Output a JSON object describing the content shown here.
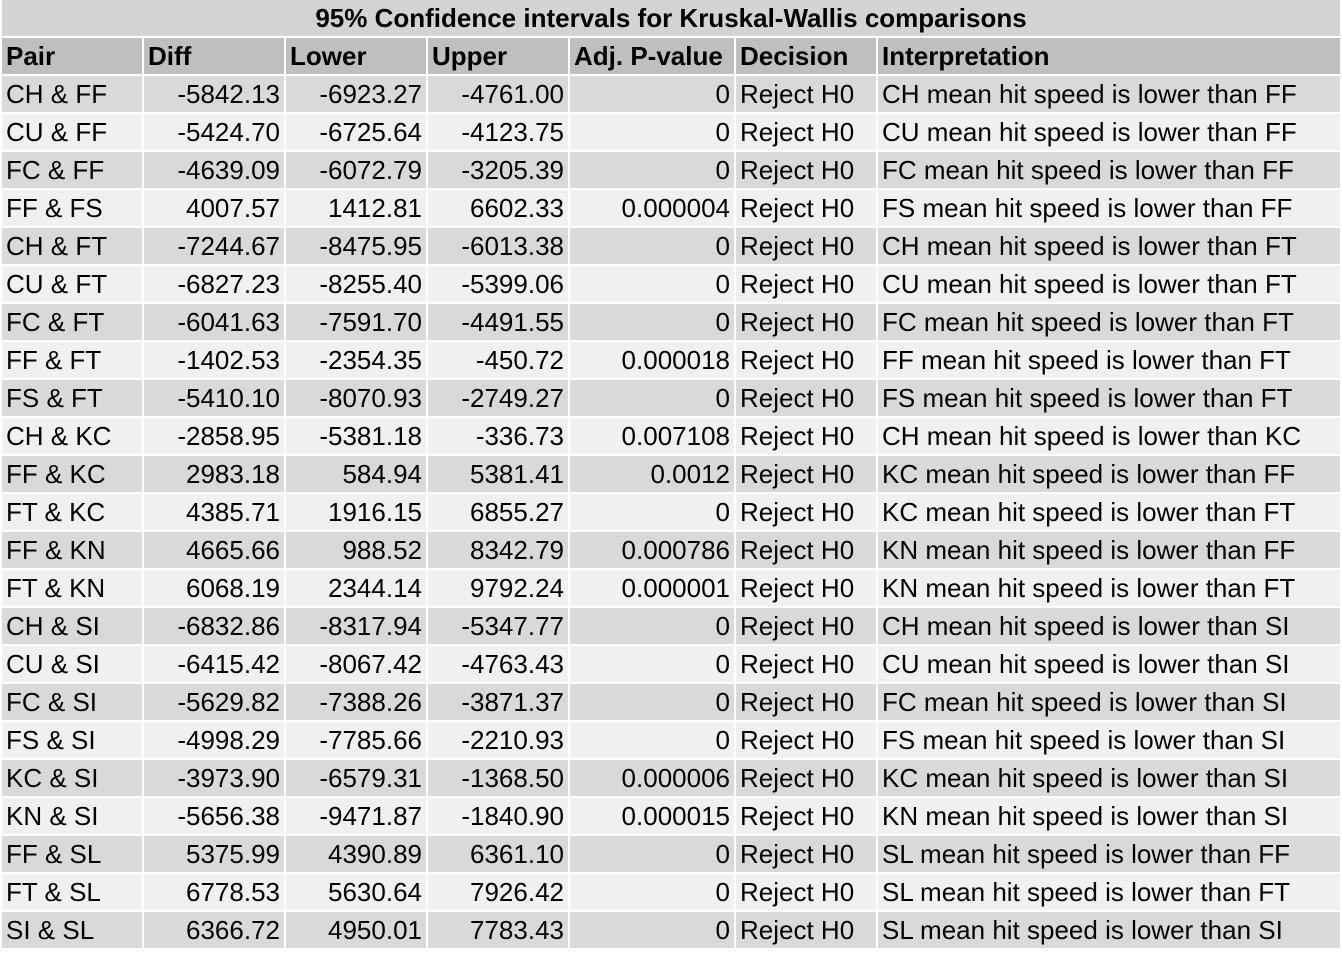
{
  "chart_data": {
    "type": "table",
    "title": "95% Confidence intervals for Kruskal-Wallis comparisons",
    "columns": [
      "Pair",
      "Diff",
      "Lower",
      "Upper",
      "Adj. P-value",
      "Decision",
      "Interpretation"
    ],
    "rows": [
      [
        "CH & FF",
        "-5842.13",
        "-6923.27",
        "-4761.00",
        "0",
        "Reject H0",
        "CH mean hit speed is lower than FF"
      ],
      [
        "CU & FF",
        "-5424.70",
        "-6725.64",
        "-4123.75",
        "0",
        "Reject H0",
        "CU mean hit speed is lower than FF"
      ],
      [
        "FC & FF",
        "-4639.09",
        "-6072.79",
        "-3205.39",
        "0",
        "Reject H0",
        "FC mean hit speed is lower than FF"
      ],
      [
        "FF & FS",
        "4007.57",
        "1412.81",
        "6602.33",
        "0.000004",
        "Reject H0",
        "FS mean hit speed is lower than FF"
      ],
      [
        "CH & FT",
        "-7244.67",
        "-8475.95",
        "-6013.38",
        "0",
        "Reject H0",
        "CH mean hit speed is lower than FT"
      ],
      [
        "CU & FT",
        "-6827.23",
        "-8255.40",
        "-5399.06",
        "0",
        "Reject H0",
        "CU mean hit speed is lower than FT"
      ],
      [
        "FC & FT",
        "-6041.63",
        "-7591.70",
        "-4491.55",
        "0",
        "Reject H0",
        "FC mean hit speed is lower than FT"
      ],
      [
        "FF & FT",
        "-1402.53",
        "-2354.35",
        "-450.72",
        "0.000018",
        "Reject H0",
        "FF mean hit speed is lower than FT"
      ],
      [
        "FS & FT",
        "-5410.10",
        "-8070.93",
        "-2749.27",
        "0",
        "Reject H0",
        "FS mean hit speed is lower than FT"
      ],
      [
        "CH & KC",
        "-2858.95",
        "-5381.18",
        "-336.73",
        "0.007108",
        "Reject H0",
        "CH mean hit speed is lower than KC"
      ],
      [
        "FF & KC",
        "2983.18",
        "584.94",
        "5381.41",
        "0.0012",
        "Reject H0",
        "KC mean hit speed is lower than FF"
      ],
      [
        "FT & KC",
        "4385.71",
        "1916.15",
        "6855.27",
        "0",
        "Reject H0",
        "KC mean hit speed is lower than FT"
      ],
      [
        "FF & KN",
        "4665.66",
        "988.52",
        "8342.79",
        "0.000786",
        "Reject H0",
        "KN mean hit speed is lower than FF"
      ],
      [
        "FT & KN",
        "6068.19",
        "2344.14",
        "9792.24",
        "0.000001",
        "Reject H0",
        "KN mean hit speed is lower than FT"
      ],
      [
        "CH & SI",
        "-6832.86",
        "-8317.94",
        "-5347.77",
        "0",
        "Reject H0",
        "CH mean hit speed is lower than SI"
      ],
      [
        "CU & SI",
        "-6415.42",
        "-8067.42",
        "-4763.43",
        "0",
        "Reject H0",
        "CU mean hit speed is lower than SI"
      ],
      [
        "FC & SI",
        "-5629.82",
        "-7388.26",
        "-3871.37",
        "0",
        "Reject H0",
        "FC mean hit speed is lower than SI"
      ],
      [
        "FS & SI",
        "-4998.29",
        "-7785.66",
        "-2210.93",
        "0",
        "Reject H0",
        "FS mean hit speed is lower than SI"
      ],
      [
        "KC & SI",
        "-3973.90",
        "-6579.31",
        "-1368.50",
        "0.000006",
        "Reject H0",
        "KC mean hit speed is lower than SI"
      ],
      [
        "KN & SI",
        "-5656.38",
        "-9471.87",
        "-1840.90",
        "0.000015",
        "Reject H0",
        "KN mean hit speed is lower than SI"
      ],
      [
        "FF & SL",
        "5375.99",
        "4390.89",
        "6361.10",
        "0",
        "Reject H0",
        "SL mean hit speed is lower than FF"
      ],
      [
        "FT & SL",
        "6778.53",
        "5630.64",
        "7926.42",
        "0",
        "Reject H0",
        "SL mean hit speed is lower than FT"
      ],
      [
        "SI & SL",
        "6366.72",
        "4950.01",
        "7783.43",
        "0",
        "Reject H0",
        "SL mean hit speed is lower than SI"
      ]
    ]
  },
  "colors": {
    "caption_bg": "#d3d3d3",
    "header_bg": "#bfbfbf",
    "row_odd_bg": "#d9d9d9",
    "row_even_bg": "#f0f0f0",
    "text": "#000000"
  }
}
